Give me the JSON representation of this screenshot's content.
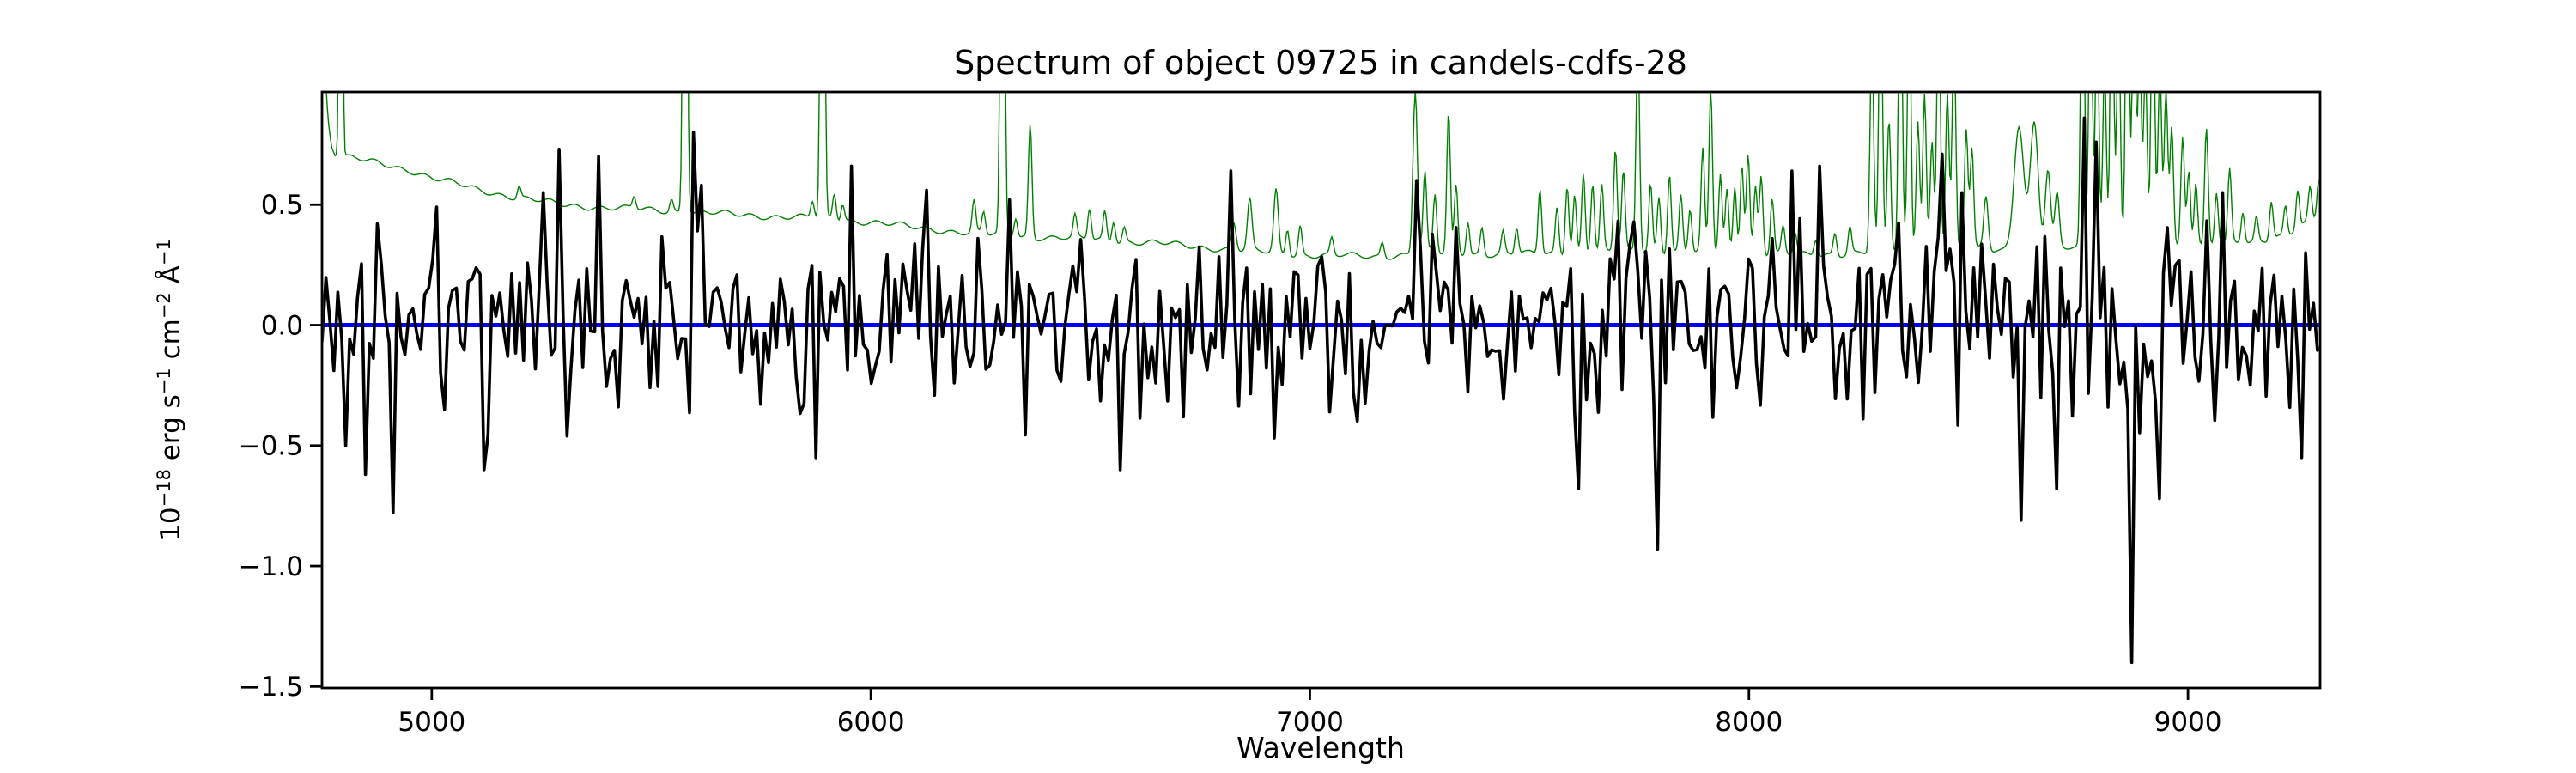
{
  "page": {
    "background": "#ffffff"
  },
  "chart_data": {
    "type": "line",
    "title": "Spectrum of object 09725 in candels-cdfs-28",
    "xlabel": "Wavelength",
    "ylabel": "10⁻¹⁸ erg s⁻¹ cm⁻² Å⁻¹",
    "ylabel_parts": [
      {
        "t": "10"
      },
      {
        "t": "−18",
        "sup": true
      },
      {
        "t": " erg s"
      },
      {
        "t": "−1",
        "sup": true
      },
      {
        "t": " cm"
      },
      {
        "t": "−2",
        "sup": true
      },
      {
        "t": " Å"
      },
      {
        "t": "−1",
        "sup": true
      }
    ],
    "grid": false,
    "legend": null,
    "x_axis": {
      "min": 4750,
      "max": 9301,
      "ticks": [
        5000,
        6000,
        7000,
        8000,
        9000
      ],
      "tick_labels": [
        "5000",
        "6000",
        "7000",
        "8000",
        "9000"
      ]
    },
    "y_axis": {
      "min": -1.506,
      "max": 0.968,
      "ticks": [
        0.5,
        0.0,
        -0.5,
        -1.0,
        -1.5
      ],
      "tick_labels": [
        "0.5",
        "0.0",
        "−0.5",
        "−1.0",
        "−1.5"
      ]
    },
    "colors": {
      "flux": "#000000",
      "error": "#008000",
      "model": "#0000ff",
      "text": "#000000",
      "background": "#ffffff"
    },
    "series": [
      {
        "name": "observed-flux",
        "role": "noisy spectrum around zero",
        "color": "#000000",
        "line_width": 3.6,
        "bin_width_angstrom": 9,
        "seed": 137,
        "noise_sigma_blue": 0.165,
        "noise_sigma_red": 0.225,
        "sky_noise_boost": 1.25,
        "sky_boost_from": 8230,
        "soft_clip": 0.66,
        "features": [
          [
            4800,
            -0.5
          ],
          [
            4853,
            -0.62
          ],
          [
            4872,
            0.42
          ],
          [
            4915,
            -0.78
          ],
          [
            5012,
            0.49
          ],
          [
            5115,
            -0.6
          ],
          [
            5250,
            0.55
          ],
          [
            5290,
            0.73
          ],
          [
            5307,
            -0.46
          ],
          [
            5383,
            0.7
          ],
          [
            5597,
            0.8
          ],
          [
            5616,
            0.58
          ],
          [
            5872,
            -0.55
          ],
          [
            5957,
            0.66
          ],
          [
            6129,
            0.56
          ],
          [
            6315,
            0.52
          ],
          [
            6570,
            -0.6
          ],
          [
            6818,
            0.64
          ],
          [
            7243,
            0.6
          ],
          [
            7610,
            -0.68
          ],
          [
            7790,
            -0.93
          ],
          [
            8095,
            0.64
          ],
          [
            8157,
            0.66
          ],
          [
            8443,
            0.71
          ],
          [
            8484,
            0.55
          ],
          [
            8618,
            -0.81
          ],
          [
            8700,
            -0.68
          ],
          [
            8765,
            0.86
          ],
          [
            8791,
            0.76
          ],
          [
            8875,
            -1.4
          ],
          [
            8931,
            -0.72
          ],
          [
            9082,
            0.55
          ],
          [
            9258,
            -0.55
          ]
        ]
      },
      {
        "name": "error-spectrum",
        "role": "1-sigma noise spectrum with sky emission lines",
        "color": "#008000",
        "line_width": 1.4,
        "sample_step_angstrom": 2.5,
        "baseline": [
          [
            4750,
            1.7
          ],
          [
            4757,
            1.05
          ],
          [
            4764,
            0.85
          ],
          [
            4772,
            0.745
          ],
          [
            4780,
            0.715
          ],
          [
            4800,
            0.7
          ],
          [
            4875,
            0.672
          ],
          [
            4950,
            0.645
          ],
          [
            5000,
            0.612
          ],
          [
            5100,
            0.565
          ],
          [
            5200,
            0.527
          ],
          [
            5300,
            0.5
          ],
          [
            5400,
            0.487
          ],
          [
            5500,
            0.478
          ],
          [
            5600,
            0.468
          ],
          [
            5700,
            0.458
          ],
          [
            5800,
            0.45
          ],
          [
            5900,
            0.442
          ],
          [
            6000,
            0.428
          ],
          [
            6100,
            0.405
          ],
          [
            6170,
            0.393
          ],
          [
            6250,
            0.378
          ],
          [
            6350,
            0.368
          ],
          [
            6450,
            0.36
          ],
          [
            6550,
            0.35
          ],
          [
            6650,
            0.34
          ],
          [
            6750,
            0.325
          ],
          [
            6850,
            0.31
          ],
          [
            6950,
            0.295
          ],
          [
            7050,
            0.288
          ],
          [
            7150,
            0.285
          ],
          [
            7250,
            0.298
          ],
          [
            7350,
            0.298
          ],
          [
            7450,
            0.293
          ],
          [
            7550,
            0.298
          ],
          [
            7650,
            0.3
          ],
          [
            7750,
            0.308
          ],
          [
            7850,
            0.303
          ],
          [
            7950,
            0.298
          ],
          [
            8050,
            0.293
          ],
          [
            8150,
            0.292
          ],
          [
            8250,
            0.3
          ],
          [
            8350,
            0.308
          ],
          [
            8450,
            0.313
          ],
          [
            8550,
            0.313
          ],
          [
            8650,
            0.318
          ],
          [
            8750,
            0.32
          ],
          [
            8850,
            0.323
          ],
          [
            8950,
            0.328
          ],
          [
            9050,
            0.333
          ],
          [
            9150,
            0.34
          ],
          [
            9230,
            0.385
          ],
          [
            9301,
            0.45
          ]
        ],
        "sky_lines": [
          [
            4793,
            3,
            3
          ],
          [
            5199,
            0.05,
            4
          ],
          [
            5461,
            0.05,
            4
          ],
          [
            5546,
            0.05,
            4
          ],
          [
            5577,
            3,
            4
          ],
          [
            5867,
            0.07,
            4
          ],
          [
            5890,
            3,
            4
          ],
          [
            5917,
            0.11,
            4
          ],
          [
            5936,
            0.07,
            4
          ],
          [
            6235,
            0.13,
            4
          ],
          [
            6257,
            0.09,
            4
          ],
          [
            6300,
            3,
            4
          ],
          [
            6330,
            0.08,
            4
          ],
          [
            6363,
            0.47,
            4
          ],
          [
            6465,
            0.09,
            4
          ],
          [
            6498,
            0.13,
            4
          ],
          [
            6533,
            0.12,
            4
          ],
          [
            6553,
            0.09,
            4
          ],
          [
            6577,
            0.06,
            4
          ],
          [
            6827,
            0.11,
            5
          ],
          [
            6863,
            0.21,
            5
          ],
          [
            6923,
            0.26,
            5
          ],
          [
            6949,
            0.11,
            4
          ],
          [
            6978,
            0.12,
            4
          ],
          [
            7050,
            0.07,
            4
          ],
          [
            7165,
            0.06,
            4
          ],
          [
            7240,
            0.68,
            5
          ],
          [
            7262,
            0.33,
            4
          ],
          [
            7285,
            0.24,
            4
          ],
          [
            7316,
            0.58,
            4
          ],
          [
            7333,
            0.28,
            4
          ],
          [
            7360,
            0.14,
            4
          ],
          [
            7392,
            0.11,
            4
          ],
          [
            7440,
            0.09,
            4
          ],
          [
            7471,
            0.11,
            4
          ],
          [
            7524,
            0.27,
            4
          ],
          [
            7563,
            0.19,
            4
          ],
          [
            7586,
            0.29,
            4
          ],
          [
            7603,
            0.24,
            4
          ],
          [
            7623,
            0.33,
            4
          ],
          [
            7644,
            0.29,
            4
          ],
          [
            7665,
            0.27,
            4
          ],
          [
            7696,
            0.43,
            4
          ],
          [
            7714,
            0.33,
            4
          ],
          [
            7747,
            0.9,
            4
          ],
          [
            7776,
            0.28,
            4
          ],
          [
            7795,
            0.23,
            4
          ],
          [
            7819,
            0.33,
            4
          ],
          [
            7845,
            0.23,
            4
          ],
          [
            7866,
            0.18,
            4
          ],
          [
            7895,
            0.42,
            4
          ],
          [
            7913,
            0.68,
            4
          ],
          [
            7935,
            0.33,
            4
          ],
          [
            7950,
            0.26,
            4
          ],
          [
            7968,
            0.28,
            4
          ],
          [
            7984,
            0.38,
            4
          ],
          [
            7998,
            0.42,
            4
          ],
          [
            8015,
            0.28,
            4
          ],
          [
            8028,
            0.33,
            4
          ],
          [
            8053,
            0.23,
            4
          ],
          [
            8078,
            0.11,
            4
          ],
          [
            8105,
            0.09,
            4
          ],
          [
            8152,
            0.07,
            4
          ],
          [
            8196,
            0.09,
            4
          ],
          [
            8230,
            0.11,
            4
          ],
          [
            8280,
            0.9,
            4
          ],
          [
            8300,
            1.2,
            4
          ],
          [
            8319,
            0.55,
            4
          ],
          [
            8345,
            1.4,
            4
          ],
          [
            8365,
            1.1,
            4
          ],
          [
            8385,
            0.55,
            4
          ],
          [
            8400,
            0.65,
            4
          ],
          [
            8417,
            0.45,
            4
          ],
          [
            8432,
            1.1,
            4
          ],
          [
            8452,
            0.65,
            4
          ],
          [
            8467,
            0.9,
            4
          ],
          [
            8495,
            0.5,
            4
          ],
          [
            8508,
            0.42,
            4
          ],
          [
            8540,
            0.22,
            5
          ],
          [
            8615,
            0.52,
            11
          ],
          [
            8650,
            0.52,
            9
          ],
          [
            8681,
            0.32,
            6
          ],
          [
            8702,
            0.22,
            5
          ],
          [
            8760,
            1.5,
            4
          ],
          [
            8778,
            1.2,
            4
          ],
          [
            8793,
            1.0,
            4
          ],
          [
            8810,
            0.75,
            4
          ],
          [
            8827,
            1.3,
            4
          ],
          [
            8842,
            1.0,
            4
          ],
          [
            8862,
            1.5,
            4
          ],
          [
            8877,
            1.1,
            4
          ],
          [
            8890,
            0.85,
            4
          ],
          [
            8903,
            0.75,
            4
          ],
          [
            8920,
            1.2,
            4
          ],
          [
            8936,
            0.75,
            4
          ],
          [
            8950,
            0.65,
            4
          ],
          [
            8963,
            0.5,
            4
          ],
          [
            8988,
            0.45,
            4
          ],
          [
            9002,
            0.32,
            4
          ],
          [
            9018,
            0.27,
            4
          ],
          [
            9042,
            0.48,
            4
          ],
          [
            9065,
            0.22,
            4
          ],
          [
            9095,
            0.3,
            4
          ],
          [
            9125,
            0.13,
            4
          ],
          [
            9156,
            0.1,
            4
          ],
          [
            9190,
            0.16,
            4
          ],
          [
            9222,
            0.12,
            4
          ],
          [
            9250,
            0.16,
            4
          ],
          [
            9278,
            0.14,
            4
          ],
          [
            9298,
            0.16,
            4
          ]
        ]
      },
      {
        "name": "model-zero-line",
        "role": "flat model / zero flux level",
        "color": "#0000ff",
        "line_width": 5,
        "value": 0.0
      }
    ]
  }
}
